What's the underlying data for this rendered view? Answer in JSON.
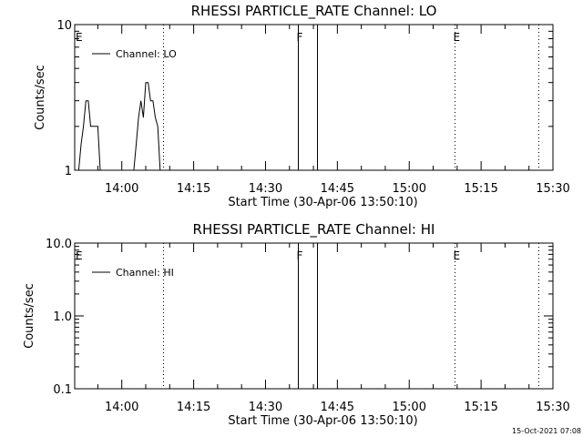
{
  "footer": {
    "timestamp": "15-Oct-2021 07:08"
  },
  "chart_data": [
    {
      "type": "line",
      "title": "RHESSI PARTICLE_RATE Channel: LO",
      "xlabel": "Start Time (30-Apr-06 13:50:10)",
      "ylabel": "Counts/sec",
      "yscale": "log",
      "ylim": [
        1,
        10
      ],
      "yticks": [
        1,
        10
      ],
      "ytick_labels": [
        "1",
        "10"
      ],
      "xlim": [
        "13:50:10",
        "15:30:00"
      ],
      "xticks": [
        "14:00",
        "14:15",
        "14:30",
        "14:45",
        "15:00",
        "15:15",
        "15:30"
      ],
      "legend": {
        "label": "Channel: LO",
        "position": "top-left"
      },
      "series": [
        {
          "name": "Channel: LO",
          "x": [
            "13:51:00",
            "13:51:30",
            "13:52:00",
            "13:52:30",
            "13:53:00",
            "13:53:30",
            "13:54:00",
            "13:54:30",
            "13:55:00",
            "13:55:30",
            "13:56:00",
            "14:02:30",
            "14:03:00",
            "14:03:30",
            "14:04:00",
            "14:04:30",
            "14:05:00",
            "14:05:30",
            "14:06:00",
            "14:06:30",
            "14:07:00",
            "14:07:30",
            "14:08:00"
          ],
          "y": [
            1,
            1.5,
            2,
            3,
            3,
            2,
            2,
            2,
            2,
            1,
            1,
            1,
            1.5,
            2.3,
            3,
            2.3,
            4,
            4,
            3,
            3,
            2.3,
            2,
            1
          ]
        }
      ],
      "markers": [
        {
          "label": "E",
          "time": "13:50:10",
          "style": "dotted"
        },
        {
          "label": "",
          "time": "14:08:40",
          "style": "dotted"
        },
        {
          "label": "F",
          "time": "14:36:40",
          "style": "solid"
        },
        {
          "label": "",
          "time": "14:40:40",
          "style": "solid"
        },
        {
          "label": "E",
          "time": "15:09:30",
          "style": "dotted"
        },
        {
          "label": "",
          "time": "15:27:00",
          "style": "dotted"
        }
      ]
    },
    {
      "type": "line",
      "title": "RHESSI PARTICLE_RATE Channel: HI",
      "xlabel": "Start Time (30-Apr-06 13:50:10)",
      "ylabel": "Counts/sec",
      "yscale": "log",
      "ylim": [
        0.1,
        10
      ],
      "yticks": [
        0.1,
        1,
        10
      ],
      "ytick_labels": [
        "0.1",
        "1.0",
        "10.0"
      ],
      "xlim": [
        "13:50:10",
        "15:30:00"
      ],
      "xticks": [
        "14:00",
        "14:15",
        "14:30",
        "14:45",
        "15:00",
        "15:15",
        "15:30"
      ],
      "legend": {
        "label": "Channel: HI",
        "position": "top-left"
      },
      "series": [
        {
          "name": "Channel: HI",
          "x": [],
          "y": []
        }
      ],
      "markers": [
        {
          "label": "E",
          "time": "13:50:10",
          "style": "dotted"
        },
        {
          "label": "",
          "time": "14:08:40",
          "style": "dotted"
        },
        {
          "label": "F",
          "time": "14:36:40",
          "style": "solid"
        },
        {
          "label": "",
          "time": "14:40:40",
          "style": "solid"
        },
        {
          "label": "E",
          "time": "15:09:30",
          "style": "dotted"
        },
        {
          "label": "",
          "time": "15:27:00",
          "style": "dotted"
        }
      ]
    }
  ]
}
